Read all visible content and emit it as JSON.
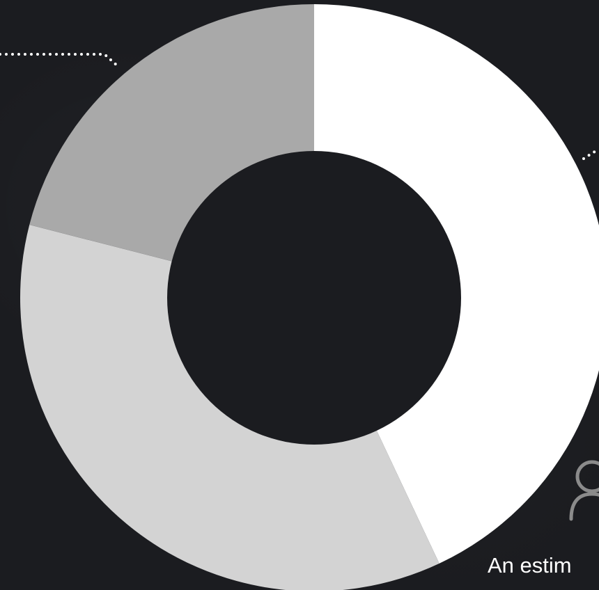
{
  "chart_data": {
    "type": "donut",
    "slices": [
      {
        "value": 43,
        "color": "#ffffff"
      },
      {
        "value": 36,
        "color": "#d3d3d3"
      },
      {
        "value": 21,
        "color": "#a9a9a9"
      }
    ],
    "center_color": "#1b1c20",
    "background": "#1b1c20"
  },
  "icons": {
    "user": "user-icon"
  },
  "caption": {
    "text": "An estim"
  }
}
